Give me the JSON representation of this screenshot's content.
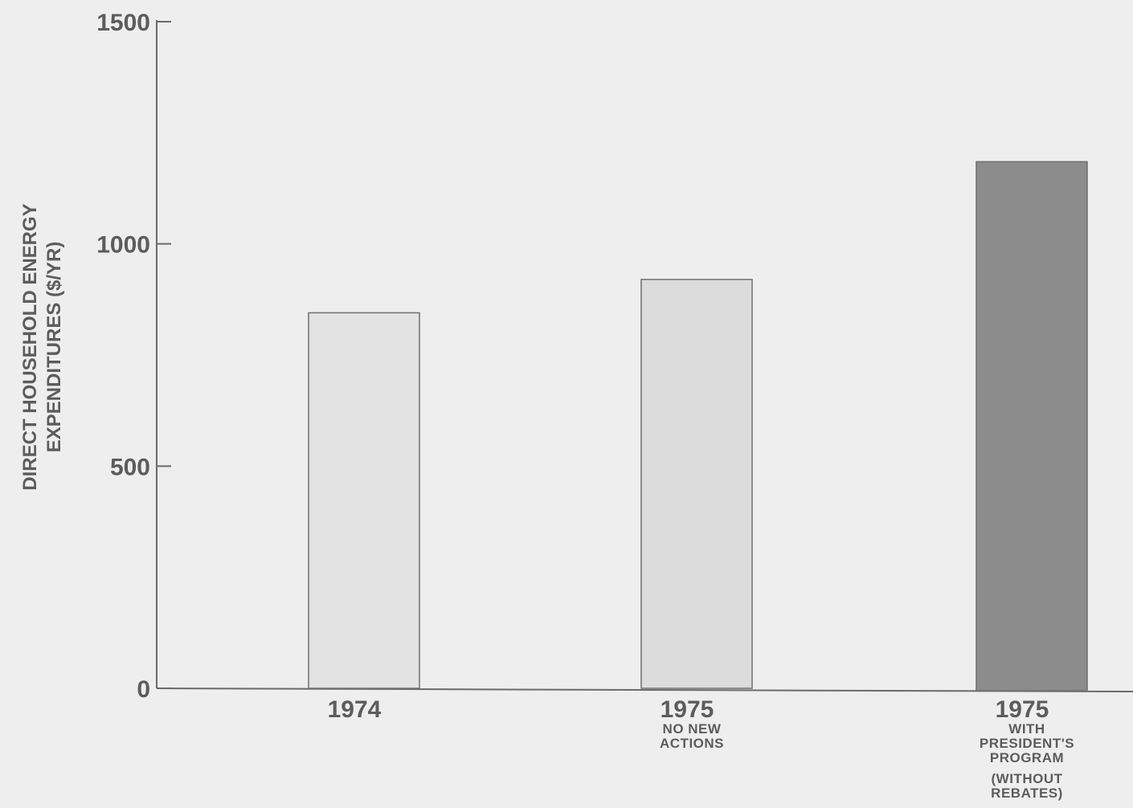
{
  "chart_data": {
    "type": "bar",
    "title": "",
    "xlabel": "",
    "ylabel_lines": [
      "DIRECT HOUSEHOLD ENERGY",
      "EXPENDITURES ($/YR)"
    ],
    "ylim": [
      0,
      1500
    ],
    "yticks": [
      0,
      500,
      1000,
      1500
    ],
    "ytick_labels": [
      "0",
      "500",
      "1000",
      "1500"
    ],
    "categories": [
      {
        "label": "1974",
        "sublabel_lines": []
      },
      {
        "label": "1975",
        "sublabel_lines": [
          "NO NEW",
          "ACTIONS"
        ]
      },
      {
        "label": "1975",
        "sublabel_lines": [
          "WITH",
          "PRESIDENT'S",
          "PROGRAM",
          "(WITHOUT",
          "REBATES)"
        ]
      }
    ],
    "values": [
      845,
      920,
      1185
    ],
    "bar_colors": [
      "#e3e3e3",
      "#dcdcdc",
      "#8c8c8c"
    ],
    "axis_color": "#6a6a6a",
    "grid": false,
    "legend": "none"
  }
}
